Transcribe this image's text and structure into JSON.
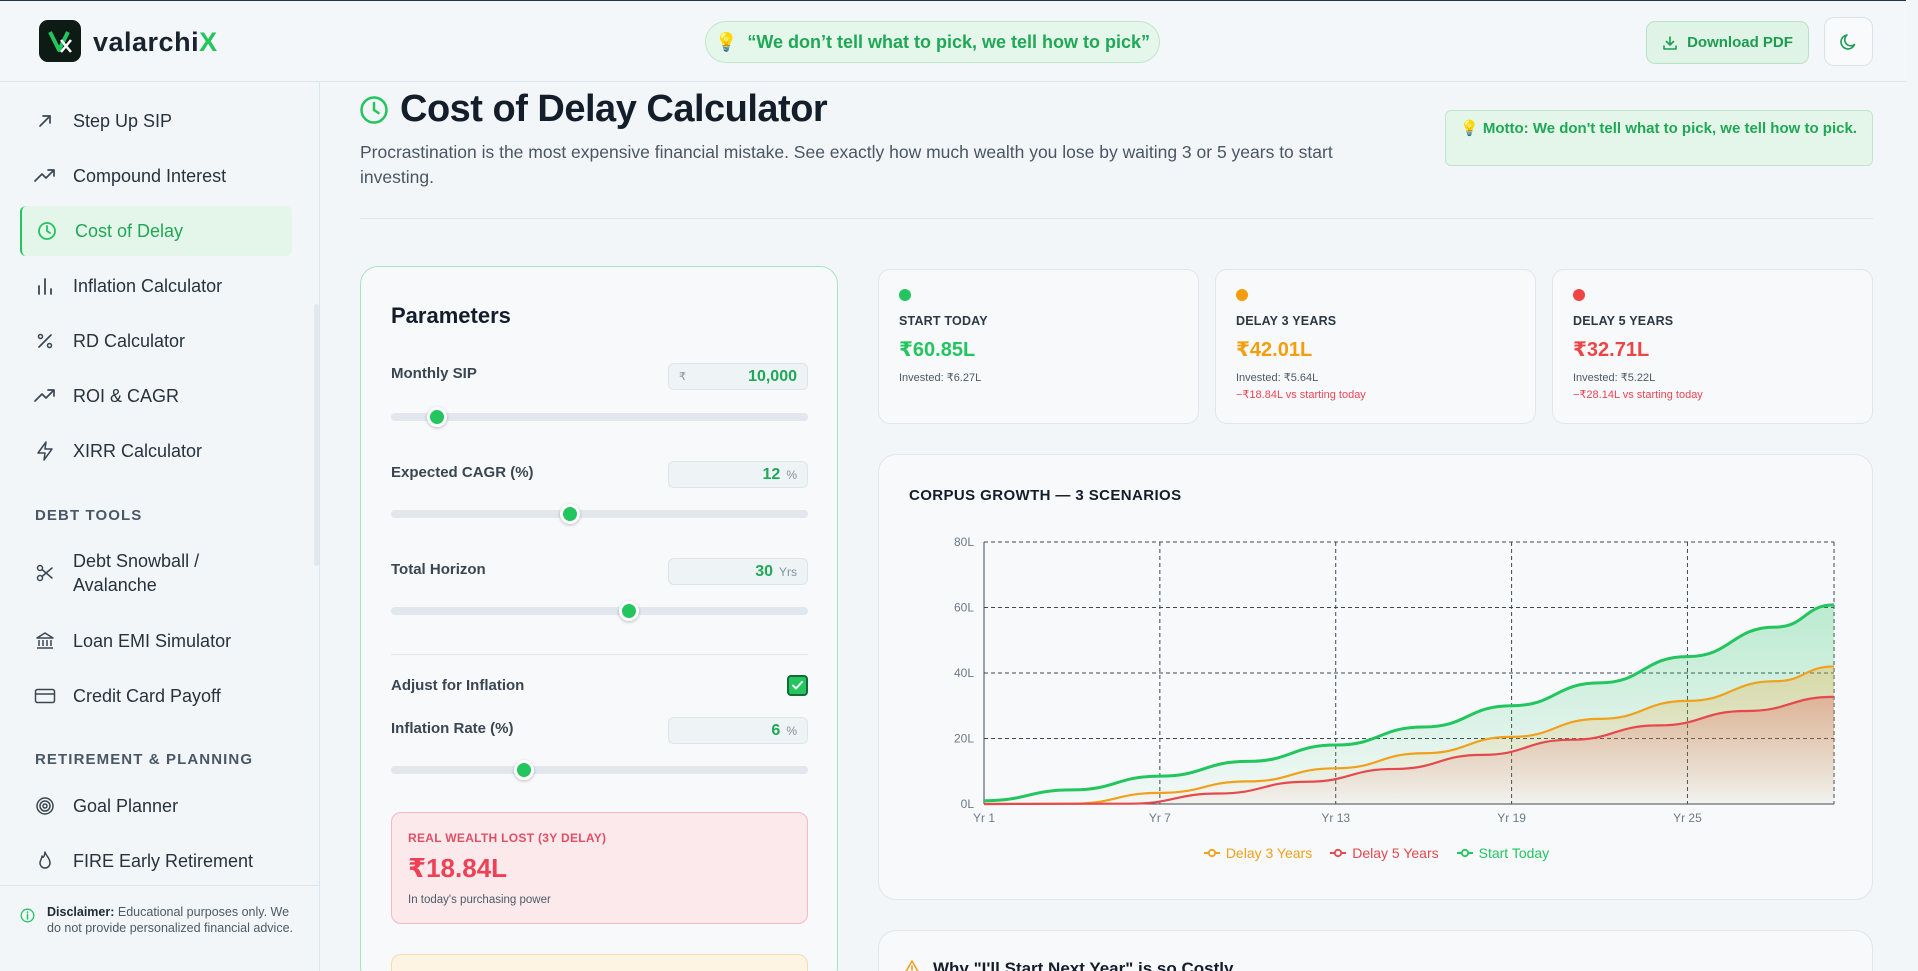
{
  "header": {
    "brand_main": "valarchi",
    "brand_accent": "X",
    "tagline": "“We don’t tell what to pick, we tell how to pick”",
    "download_label": "Download PDF"
  },
  "sidebar": {
    "items_top": [
      {
        "label": "Step Up SIP",
        "icon": "arrow-up-right-icon"
      },
      {
        "label": "Compound Interest",
        "icon": "trending-up-icon"
      },
      {
        "label": "Cost of Delay",
        "icon": "clock-icon",
        "active": true
      },
      {
        "label": "Inflation Calculator",
        "icon": "bar-chart-icon"
      },
      {
        "label": "RD Calculator",
        "icon": "percent-icon"
      },
      {
        "label": "ROI & CAGR",
        "icon": "trending-up-icon"
      },
      {
        "label": "XIRR Calculator",
        "icon": "zap-icon"
      }
    ],
    "debt_heading": "DEBT TOOLS",
    "debt_items": [
      {
        "label_line1": "Debt Snowball /",
        "label_line2": "Avalanche",
        "icon": "scissors-icon"
      },
      {
        "label": "Loan EMI Simulator",
        "icon": "bank-icon"
      },
      {
        "label": "Credit Card Payoff",
        "icon": "credit-card-icon"
      }
    ],
    "retire_heading": "RETIREMENT & PLANNING",
    "retire_items": [
      {
        "label": "Goal Planner",
        "icon": "target-icon"
      },
      {
        "label": "FIRE Early Retirement",
        "icon": "flame-icon"
      }
    ],
    "disclaimer_bold": "Disclaimer:",
    "disclaimer_text": " Educational purposes only. We do not provide personalized financial advice."
  },
  "page": {
    "title": "Cost of Delay Calculator",
    "description": "Procrastination is the most expensive financial mistake. See exactly how much wealth you lose by waiting 3 or 5 years to start investing.",
    "motto": "💡 Motto: We don't tell what to pick, we tell how to pick."
  },
  "params": {
    "title": "Parameters",
    "monthly_sip_label": "Monthly SIP",
    "monthly_sip_prefix": "₹",
    "monthly_sip_value": "10,000",
    "monthly_sip_slider": 0.11,
    "cagr_label": "Expected CAGR (%)",
    "cagr_value": "12",
    "cagr_unit": "%",
    "cagr_slider": 0.43,
    "horizon_label": "Total Horizon",
    "horizon_value": "30",
    "horizon_unit": "Yrs",
    "horizon_slider": 0.57,
    "inflation_toggle_label": "Adjust for Inflation",
    "inflation_enabled": true,
    "inflation_label": "Inflation Rate (%)",
    "inflation_value": "6",
    "inflation_unit": "%",
    "inflation_slider": 0.32,
    "loss_label": "REAL WEALTH LOST (3Y DELAY)",
    "loss_value": "₹18.84L",
    "loss_sub": "In today's purchasing power"
  },
  "stats": [
    {
      "label": "START TODAY",
      "value": "₹60.85L",
      "invested": "Invested: ₹6.27L",
      "loss": "",
      "color": "#22c55e"
    },
    {
      "label": "DELAY 3 YEARS",
      "value": "₹42.01L",
      "invested": "Invested: ₹5.64L",
      "loss": "−₹18.84L vs starting today",
      "color": "#f59e0b"
    },
    {
      "label": "DELAY 5 YEARS",
      "value": "₹32.71L",
      "invested": "Invested: ₹5.22L",
      "loss": "−₹28.14L vs starting today",
      "color": "#ef4444"
    }
  ],
  "chart_data": {
    "type": "area",
    "title": "CORPUS GROWTH — 3 SCENARIOS",
    "x_ticks": [
      "Yr 1",
      "Yr 7",
      "Yr 13",
      "Yr 19",
      "Yr 25"
    ],
    "y_ticks": [
      "0L",
      "20L",
      "40L",
      "60L",
      "80L"
    ],
    "ylim": [
      0,
      80
    ],
    "xlim": [
      1,
      30
    ],
    "grid": true,
    "legend_position": "bottom-center",
    "series": [
      {
        "name": "Delay 3 Years",
        "color": "#f0a01c",
        "x": [
          1,
          4,
          7,
          10,
          13,
          16,
          19,
          22,
          25,
          28,
          30
        ],
        "values": [
          0,
          0.1,
          3.4,
          6.9,
          10.9,
          15.5,
          20.5,
          26.0,
          31.5,
          37.5,
          42.0
        ]
      },
      {
        "name": "Delay 5 Years",
        "color": "#e5484d",
        "x": [
          1,
          6,
          9,
          12,
          15,
          18,
          21,
          24,
          27,
          30
        ],
        "values": [
          0,
          0.1,
          3.2,
          6.8,
          10.7,
          15.0,
          19.6,
          24.0,
          28.4,
          32.7
        ]
      },
      {
        "name": "Start Today",
        "color": "#22c55e",
        "x": [
          1,
          4,
          7,
          10,
          13,
          16,
          19,
          22,
          25,
          28,
          30
        ],
        "values": [
          1.0,
          4.3,
          8.5,
          13.0,
          18.0,
          23.5,
          30.0,
          37.0,
          45.0,
          54.0,
          60.8
        ]
      }
    ]
  },
  "why": {
    "title": "Why \"I'll Start Next Year\" is so Costly"
  }
}
